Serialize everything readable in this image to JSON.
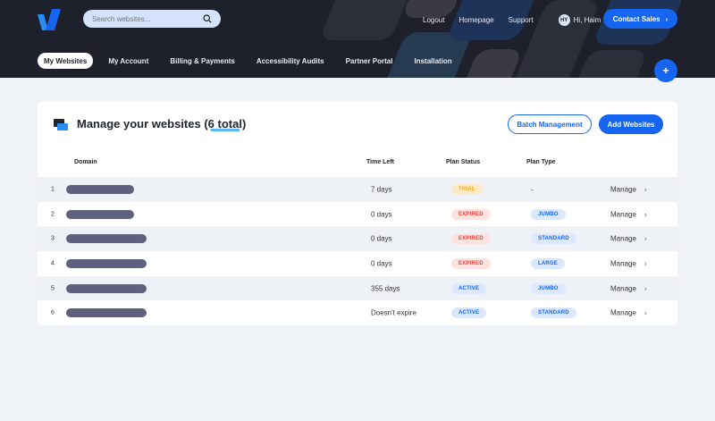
{
  "header": {
    "search_placeholder": "Search websites...",
    "links": [
      "Logout",
      "Homepage",
      "Support"
    ],
    "user": {
      "initials": "HY",
      "greeting": "Hi, Haim"
    },
    "contact_label": "Contact Sales"
  },
  "nav": {
    "tabs": [
      "My Websites",
      "My Account",
      "Billing & Payments",
      "Accessibility Audits",
      "Partner Portal",
      "Installation"
    ],
    "active": "My Websites"
  },
  "plus_label": "+",
  "card": {
    "title": "Manage your websites",
    "count": "(6 total)",
    "batch_label": "Batch Management",
    "add_label": "Add Websites",
    "columns": [
      "Domain",
      "Time Left",
      "Plan Status",
      "Plan Type"
    ],
    "rows": [
      {
        "num": "1",
        "time": "7 days",
        "status": "TRIAL",
        "type": "-",
        "action": "Manage"
      },
      {
        "num": "2",
        "time": "0 days",
        "status": "EXPIRED",
        "type": "JUMBO",
        "action": "Manage"
      },
      {
        "num": "3",
        "time": "0 days",
        "status": "EXPIRED",
        "type": "STANDARD",
        "action": "Manage"
      },
      {
        "num": "4",
        "time": "0 days",
        "status": "EXPIRED",
        "type": "LARGE",
        "action": "Manage"
      },
      {
        "num": "5",
        "time": "355 days",
        "status": "ACTIVE",
        "type": "JUMBO",
        "action": "Manage"
      },
      {
        "num": "6",
        "time": "Doesn't expire",
        "status": "ACTIVE",
        "type": "STANDARD",
        "action": "Manage"
      }
    ]
  },
  "colors": {
    "accent": "#1565f0",
    "header_bg": "#1e212b",
    "trial": "#f5a623",
    "expired": "#e8453c",
    "active": "#1565f0"
  }
}
